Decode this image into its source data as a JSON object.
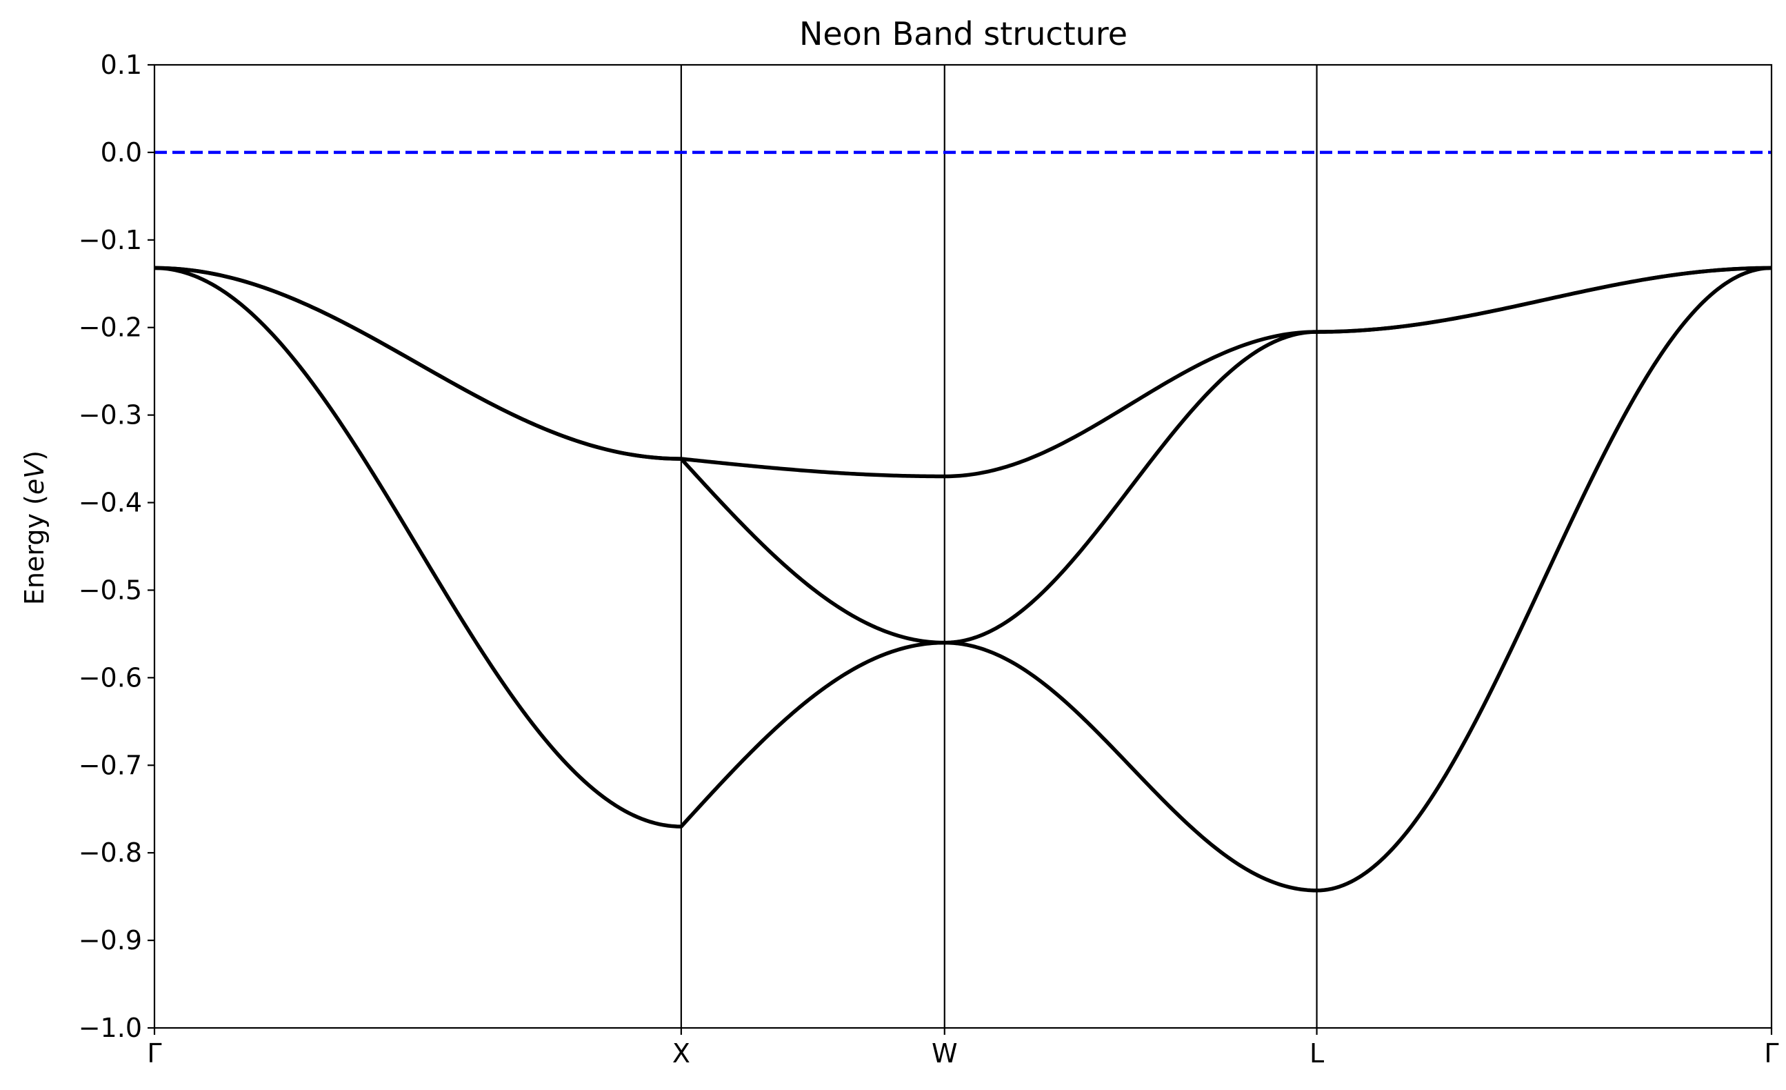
{
  "chart_data": {
    "type": "line",
    "title": "Neon Band structure",
    "xlabel": "",
    "ylabel_text": "Energy (",
    "ylabel_italic": "eV",
    "ylabel_close": ")",
    "ylim": [
      -1.0,
      0.1
    ],
    "xlim": [
      0,
      1.842
    ],
    "high_symmetry_points": [
      {
        "label": "Γ",
        "x": 0.0
      },
      {
        "label": "X",
        "x": 0.6
      },
      {
        "label": "W",
        "x": 0.9
      },
      {
        "label": "L",
        "x": 1.324
      },
      {
        "label": "Γ",
        "x": 1.842
      }
    ],
    "y_ticks": [
      {
        "value": 0.1,
        "label": "0.1"
      },
      {
        "value": 0.0,
        "label": "0.0"
      },
      {
        "value": -0.1,
        "label": "−0.1"
      },
      {
        "value": -0.2,
        "label": "−0.2"
      },
      {
        "value": -0.3,
        "label": "−0.3"
      },
      {
        "value": -0.4,
        "label": "−0.4"
      },
      {
        "value": -0.5,
        "label": "−0.5"
      },
      {
        "value": -0.6,
        "label": "−0.6"
      },
      {
        "value": -0.7,
        "label": "−0.7"
      },
      {
        "value": -0.8,
        "label": "−0.8"
      },
      {
        "value": -0.9,
        "label": "−0.9"
      },
      {
        "value": -1.0,
        "label": "−1.0"
      }
    ],
    "fermi_level": {
      "value": 0.0,
      "color": "#0000ff",
      "style": "dashed"
    },
    "band_color": "#000000",
    "series": [
      {
        "segments": [
          {
            "from": 0.0,
            "to": 0.6,
            "start": -0.132,
            "end": -0.35,
            "kind": "cos"
          },
          {
            "from": 0.6,
            "to": 0.9,
            "start": -0.35,
            "end": -0.37,
            "kind": "sin"
          },
          {
            "from": 0.9,
            "to": 1.324,
            "start": -0.37,
            "end": -0.205,
            "kind": "cos"
          },
          {
            "from": 1.324,
            "to": 1.842,
            "start": -0.205,
            "end": -0.132,
            "kind": "cos"
          }
        ]
      },
      {
        "segments": [
          {
            "from": 0.0,
            "to": 0.6,
            "start": -0.132,
            "end": -0.35,
            "kind": "cos"
          },
          {
            "from": 0.6,
            "to": 0.9,
            "start": -0.35,
            "end": -0.56,
            "kind": "sin"
          },
          {
            "from": 0.9,
            "to": 1.324,
            "start": -0.56,
            "end": -0.205,
            "kind": "cos"
          },
          {
            "from": 1.324,
            "to": 1.842,
            "start": -0.205,
            "end": -0.132,
            "kind": "cos"
          }
        ]
      },
      {
        "segments": [
          {
            "from": 0.0,
            "to": 0.6,
            "start": -0.132,
            "end": -0.77,
            "kind": "cos"
          },
          {
            "from": 0.6,
            "to": 0.9,
            "start": -0.77,
            "end": -0.56,
            "kind": "sin"
          },
          {
            "from": 0.9,
            "to": 1.324,
            "start": -0.56,
            "end": -0.843,
            "kind": "cos"
          },
          {
            "from": 1.324,
            "to": 1.842,
            "start": -0.843,
            "end": -0.132,
            "kind": "cos"
          }
        ]
      }
    ],
    "grid": false,
    "legend": "none"
  }
}
